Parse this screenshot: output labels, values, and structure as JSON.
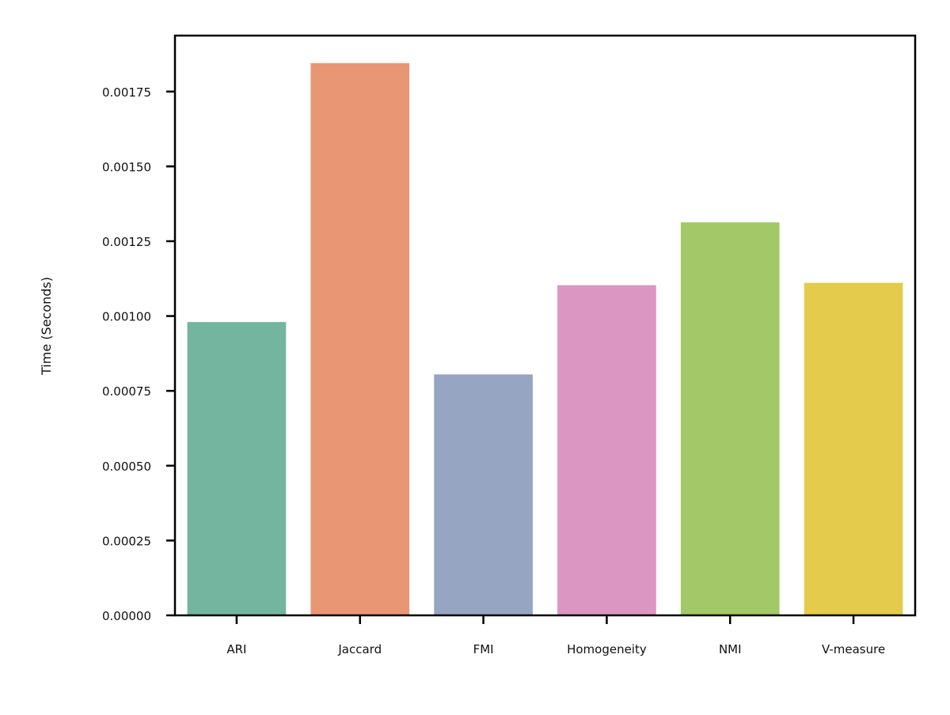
{
  "chart_data": {
    "type": "bar",
    "title": "",
    "xlabel": "",
    "ylabel": "Time (Seconds)",
    "categories": [
      "ARI",
      "Jaccard",
      "FMI",
      "Homogeneity",
      "NMI",
      "V-measure"
    ],
    "values": [
      0.00098,
      0.001845,
      0.000805,
      0.001103,
      0.001313,
      0.001111
    ],
    "colors": [
      "#73b59f",
      "#e99675",
      "#95a5c2",
      "#db96c1",
      "#a3c867",
      "#e4cb4b"
    ],
    "yticks": [
      "0.00000",
      "0.00025",
      "0.00050",
      "0.00075",
      "0.00100",
      "0.00125",
      "0.00150",
      "0.00175"
    ],
    "ytick_values": [
      0,
      0.00025,
      0.0005,
      0.00075,
      0.001,
      0.00125,
      0.0015,
      0.00175
    ],
    "ylim": [
      0,
      0.001937
    ],
    "grid": false,
    "legend": "none"
  }
}
